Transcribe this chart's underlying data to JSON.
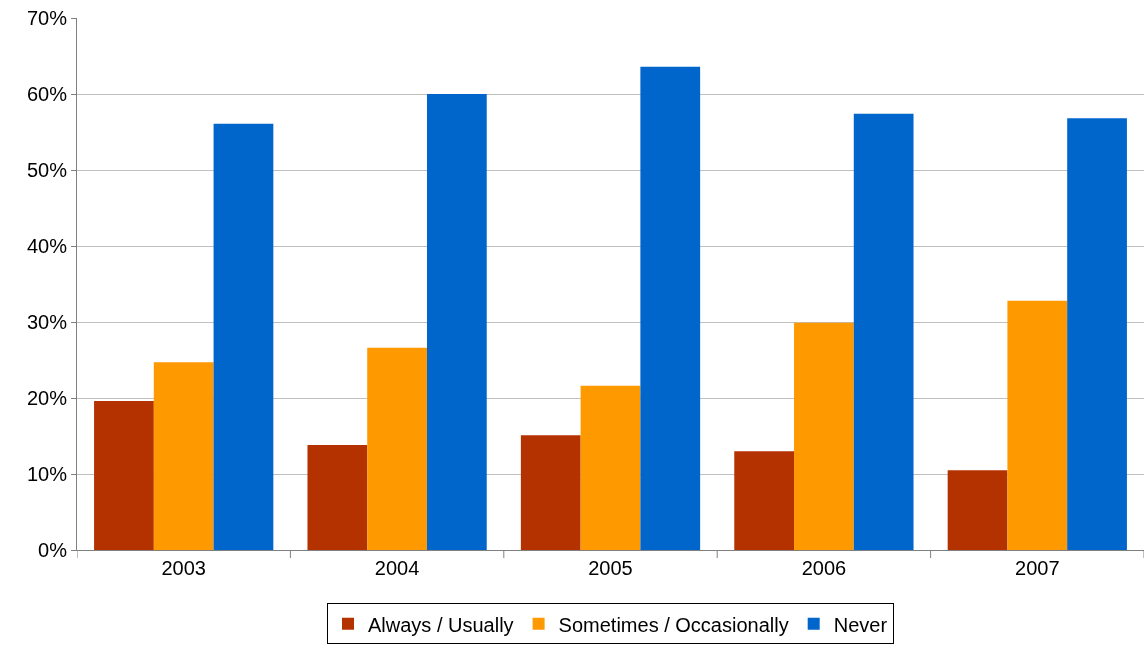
{
  "chart_data": {
    "type": "bar",
    "categories": [
      "2003",
      "2004",
      "2005",
      "2006",
      "2007"
    ],
    "series": [
      {
        "name": "Always / Usually",
        "color": "#b33200",
        "values": [
          19.6,
          13.8,
          15.1,
          13.0,
          10.5
        ]
      },
      {
        "name": "Sometimes / Occasionally",
        "color": "#ff9900",
        "values": [
          24.7,
          26.6,
          21.6,
          29.9,
          32.8
        ]
      },
      {
        "name": "Never",
        "color": "#0066cc",
        "values": [
          56.1,
          60.0,
          63.6,
          57.4,
          56.8
        ]
      }
    ],
    "ylim": [
      0,
      70
    ],
    "yticks": [
      {
        "value": 0,
        "label": "0%"
      },
      {
        "value": 10,
        "label": "10%"
      },
      {
        "value": 20,
        "label": "20%"
      },
      {
        "value": 30,
        "label": "30%"
      },
      {
        "value": 40,
        "label": "40%"
      },
      {
        "value": 50,
        "label": "50%"
      },
      {
        "value": 60,
        "label": "60%"
      },
      {
        "value": 70,
        "label": "70%"
      }
    ],
    "grid": "y",
    "legend": "bottom"
  }
}
